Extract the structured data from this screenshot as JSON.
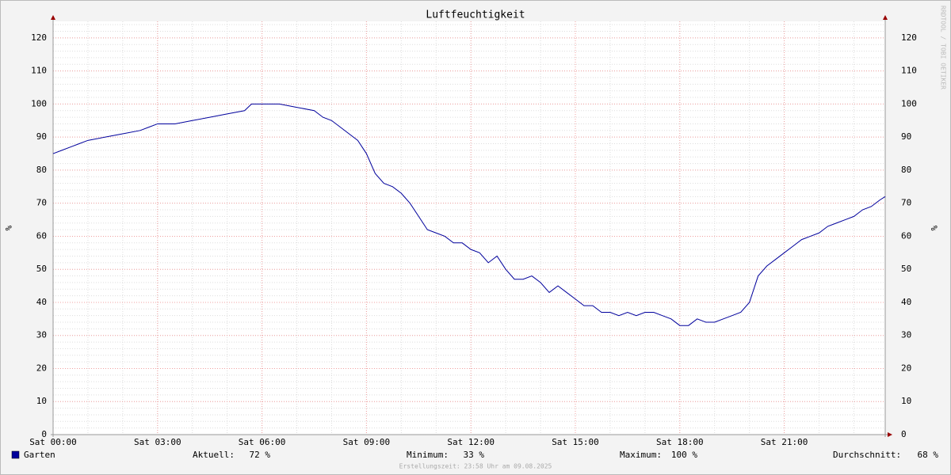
{
  "chart_data": {
    "type": "line",
    "title": "Luftfeuchtigkeit",
    "y_label": "%",
    "watermark": "RRDTOOL / TOBI OETIKER",
    "x": [
      0,
      0.25,
      0.5,
      0.75,
      1,
      1.5,
      2,
      2.5,
      2.75,
      3,
      3.5,
      4,
      4.5,
      5,
      5.5,
      5.7,
      6,
      6.5,
      7,
      7.5,
      7.75,
      8,
      8.25,
      8.5,
      8.75,
      9,
      9.25,
      9.5,
      9.75,
      10,
      10.25,
      10.5,
      10.75,
      11,
      11.25,
      11.5,
      11.75,
      12,
      12.25,
      12.5,
      12.75,
      13,
      13.25,
      13.5,
      13.75,
      14,
      14.25,
      14.5,
      14.75,
      15,
      15.25,
      15.5,
      15.75,
      16,
      16.25,
      16.5,
      16.75,
      17,
      17.25,
      17.5,
      17.75,
      18,
      18.25,
      18.5,
      18.75,
      19,
      19.25,
      19.5,
      19.75,
      20,
      20.25,
      20.5,
      20.75,
      21,
      21.25,
      21.5,
      21.75,
      22,
      22.25,
      22.5,
      22.75,
      23,
      23.25,
      23.5,
      23.75,
      23.9
    ],
    "series": [
      {
        "name": "Garten",
        "color": "#00009c",
        "values": [
          85,
          86,
          87,
          88,
          89,
          90,
          91,
          92,
          93,
          94,
          94,
          95,
          96,
          97,
          98,
          100,
          100,
          100,
          99,
          98,
          96,
          95,
          93,
          91,
          89,
          85,
          79,
          76,
          75,
          73,
          70,
          66,
          62,
          61,
          60,
          58,
          58,
          56,
          55,
          52,
          54,
          50,
          47,
          47,
          48,
          46,
          43,
          45,
          43,
          41,
          39,
          39,
          37,
          37,
          36,
          37,
          36,
          37,
          37,
          36,
          35,
          33,
          33,
          35,
          34,
          34,
          35,
          36,
          37,
          40,
          48,
          51,
          53,
          55,
          57,
          59,
          60,
          61,
          63,
          64,
          65,
          66,
          68,
          69,
          71,
          72
        ]
      }
    ],
    "xlim": [
      0,
      23.9
    ],
    "ylim": [
      0,
      125
    ],
    "xticks": [
      {
        "value": 0,
        "label": "Sat 00:00"
      },
      {
        "value": 3,
        "label": "Sat 03:00"
      },
      {
        "value": 6,
        "label": "Sat 06:00"
      },
      {
        "value": 9,
        "label": "Sat 09:00"
      },
      {
        "value": 12,
        "label": "Sat 12:00"
      },
      {
        "value": 15,
        "label": "Sat 15:00"
      },
      {
        "value": 18,
        "label": "Sat 18:00"
      },
      {
        "value": 21,
        "label": "Sat 21:00"
      }
    ],
    "yticks": [
      0,
      10,
      20,
      30,
      40,
      50,
      60,
      70,
      80,
      90,
      100,
      110,
      120
    ],
    "grid": true,
    "stats": [
      {
        "label": "Aktuell:",
        "text": "72 %"
      },
      {
        "label": "Minimum:",
        "text": "33 %"
      },
      {
        "label": "Maximum:",
        "text": "100 %"
      },
      {
        "label": "Durchschnitt:",
        "text": "68 %"
      }
    ],
    "footer": "Erstellungszeit: 23:58 Uhr am 09.08.2025"
  }
}
